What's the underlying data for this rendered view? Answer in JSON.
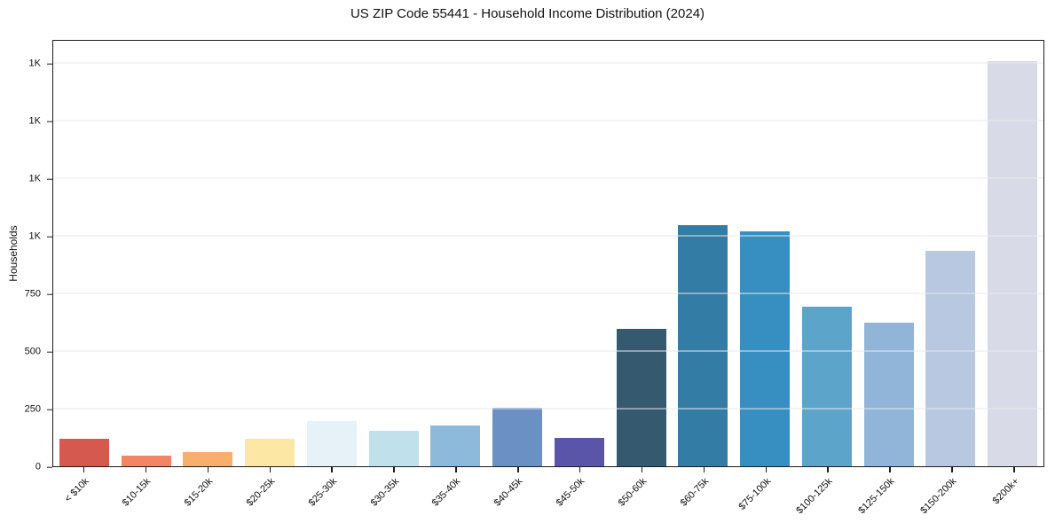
{
  "title": "US ZIP Code 55441 - Household Income Distribution (2024)",
  "chart_data": {
    "type": "bar",
    "title": "US ZIP Code 55441 - Household Income Distribution (2024)",
    "xlabel": "",
    "ylabel": "Households",
    "ylim": [
      0,
      1854
    ],
    "grid": true,
    "grid_color": "#e9e9ec",
    "legend": "none",
    "frame": "full-box",
    "yticks": [
      {
        "value": 0,
        "label": "0"
      },
      {
        "value": 250,
        "label": "250"
      },
      {
        "value": 500,
        "label": "500"
      },
      {
        "value": 750,
        "label": "750"
      },
      {
        "value": 1000,
        "label": "1K"
      },
      {
        "value": 1250,
        "label": "1K"
      },
      {
        "value": 1500,
        "label": "1K"
      },
      {
        "value": 1750,
        "label": "1K"
      }
    ],
    "categories": [
      "< $10k",
      "$10-15k",
      "$15-20k",
      "$20-25k",
      "$25-30k",
      "$30-35k",
      "$35-40k",
      "$40-45k",
      "$45-50k",
      "$50-60k",
      "$60-75k",
      "$75-100k",
      "$100-125k",
      "$125-150k",
      "$150-200k",
      "$200k+"
    ],
    "values": [
      118,
      47,
      62,
      120,
      198,
      155,
      177,
      256,
      125,
      598,
      1051,
      1024,
      697,
      624,
      938,
      1765
    ],
    "bar_colors": [
      "#d6594f",
      "#f28563",
      "#f8ae6d",
      "#fce8a4",
      "#e6f2f8",
      "#c0e0ec",
      "#8db9da",
      "#6b90c4",
      "#5a55a9",
      "#35596f",
      "#337ca6",
      "#378ec1",
      "#5ca4c9",
      "#90b5d8",
      "#b8c8e1",
      "#d9dae8"
    ],
    "xtick_label_rotation_deg": 45,
    "background_color": "#ffffff",
    "spine_color": "#1c1c1c"
  }
}
